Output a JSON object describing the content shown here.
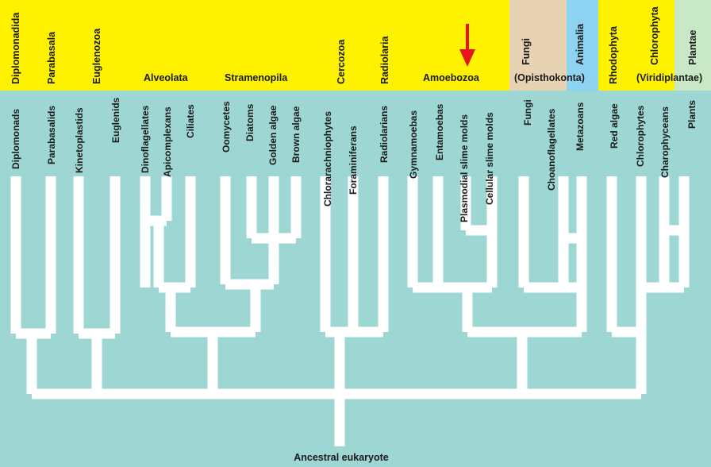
{
  "supergroups": {
    "diplomonadida": "Diplomonadida",
    "parabasala": "Parabasala",
    "euglenozoa": "Euglenozoa",
    "alveolata": "Alveolata",
    "stramenopila": "Stramenopila",
    "cercozoa": "Cercozoa",
    "radiolaria": "Radiolaria",
    "amoebozoa": "Amoebozoa",
    "fungi": "Fungi",
    "animalia": "Animalia",
    "opisthokonta": "(Opisthokonta)",
    "rhodophyta": "Rhodophyta",
    "chlorophyta": "Chlorophyta",
    "plantae": "Plantae",
    "viridiplantae": "(Viridiplantae)"
  },
  "taxa": [
    "Diplomonads",
    "Parabasalids",
    "Kinetoplastids",
    "Euglenids",
    "Dinoflagellates",
    "Apicomplexans",
    "Ciliates",
    "Oomycetes",
    "Diatoms",
    "Golden algae",
    "Brown algae",
    "Chlorarachniophytes",
    "Foraminiferans",
    "Radiolarians",
    "Gymnamoebas",
    "Entamoebas",
    "Plasmodial slime molds",
    "Cellular slime molds",
    "Fungi",
    "Choanoflagellates",
    "Metazoans",
    "Red algae",
    "Chlorophytes",
    "Charophyceans",
    "Plants"
  ],
  "root_label": "Ancestral eukaryote",
  "colors": {
    "background": "#9dd6d3",
    "header_yellow": "#fff200",
    "fungi_band": "#e8d2b4",
    "animalia_band": "#8fd3f3",
    "plantae_band": "#c9e8c6",
    "branch": "#ffffff",
    "arrow": "#e8141c"
  },
  "icons": [
    "red-arrow-icon"
  ]
}
